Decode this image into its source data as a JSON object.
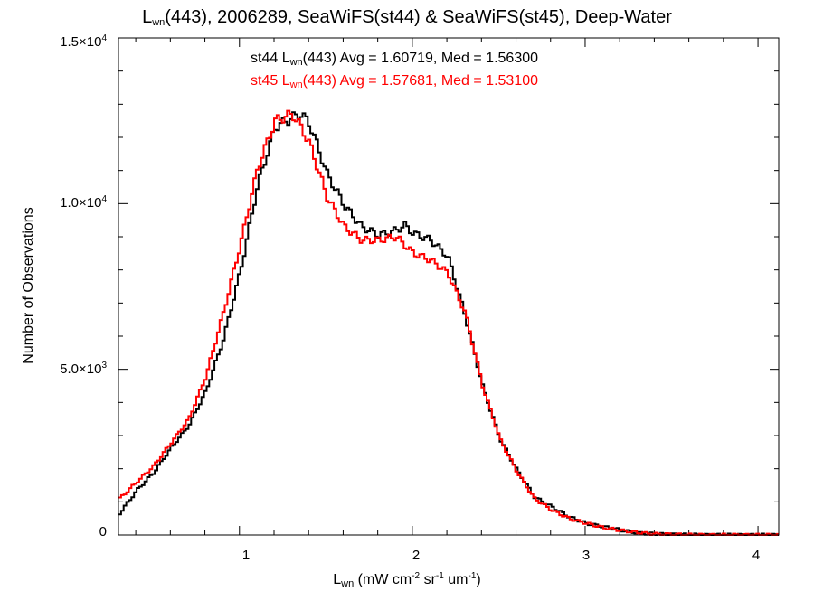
{
  "chart_data": {
    "type": "line",
    "title": {
      "pre": "L",
      "sub": "wn",
      "post": "(443), 2006289, SeaWiFS(st44) & SeaWiFS(st45), Deep-Water"
    },
    "xlabel": {
      "pre": "L",
      "sub": "wn",
      "post": " (mW cm",
      "sup1": "-2",
      "mid": " sr",
      "sup2": "-1",
      "end": " um",
      "sup3": "-1",
      "close": ")"
    },
    "ylabel": "Number of Observations",
    "xlim": [
      0.3,
      4.12
    ],
    "ylim": [
      0,
      15000
    ],
    "x_ticks": [
      {
        "value": 1,
        "label": "1"
      },
      {
        "value": 2,
        "label": "2"
      },
      {
        "value": 3,
        "label": "3"
      },
      {
        "value": 4,
        "label": "4"
      }
    ],
    "y_ticks": [
      {
        "value": 0,
        "mant": "0",
        "exp": ""
      },
      {
        "value": 5000,
        "mant": "5.0×10",
        "exp": "3"
      },
      {
        "value": 10000,
        "mant": "1.0×10",
        "exp": "4"
      },
      {
        "value": 15000,
        "mant": "1.5×10",
        "exp": "4"
      }
    ],
    "annotations": [
      {
        "color": "#000000",
        "pre": "st44 L",
        "sub": "wn",
        "post": "(443) Avg = 1.60719, Med = 1.56300"
      },
      {
        "color": "#ff0000",
        "pre": "st45 L",
        "sub": "wn",
        "post": "(443) Avg = 1.57681, Med = 1.53100"
      }
    ],
    "series": [
      {
        "color": "#000000",
        "x": [
          0.3,
          0.4,
          0.5,
          0.6,
          0.7,
          0.8,
          0.9,
          1.0,
          1.1,
          1.2,
          1.3,
          1.35,
          1.4,
          1.5,
          1.6,
          1.7,
          1.8,
          1.9,
          1.95,
          2.0,
          2.1,
          2.2,
          2.3,
          2.4,
          2.5,
          2.6,
          2.7,
          2.8,
          2.9,
          3.0,
          3.1,
          3.2,
          3.3,
          3.4,
          3.6,
          3.8,
          4.12
        ],
        "y": [
          650,
          1350,
          1900,
          2650,
          3300,
          4350,
          5900,
          8000,
          10600,
          12300,
          12600,
          12700,
          12400,
          10900,
          9950,
          9300,
          9050,
          9200,
          9350,
          9100,
          8900,
          8400,
          6600,
          4500,
          2900,
          1950,
          1150,
          850,
          550,
          350,
          250,
          150,
          60,
          30,
          5,
          0,
          0
        ]
      },
      {
        "color": "#ff0000",
        "x": [
          0.3,
          0.4,
          0.5,
          0.6,
          0.7,
          0.8,
          0.9,
          1.0,
          1.1,
          1.2,
          1.3,
          1.35,
          1.4,
          1.5,
          1.6,
          1.7,
          1.8,
          1.9,
          2.0,
          2.1,
          2.2,
          2.3,
          2.4,
          2.5,
          2.6,
          2.7,
          2.8,
          2.9,
          3.0,
          3.1,
          3.2,
          3.3,
          3.4,
          3.6,
          3.8,
          4.12
        ],
        "y": [
          1100,
          1600,
          2100,
          2800,
          3500,
          4800,
          6700,
          8800,
          11100,
          12500,
          12700,
          12300,
          11800,
          10200,
          9300,
          8900,
          8900,
          9000,
          8500,
          8300,
          7900,
          6700,
          4500,
          2900,
          1900,
          1100,
          750,
          500,
          350,
          220,
          140,
          70,
          30,
          5,
          0,
          0
        ]
      }
    ]
  }
}
